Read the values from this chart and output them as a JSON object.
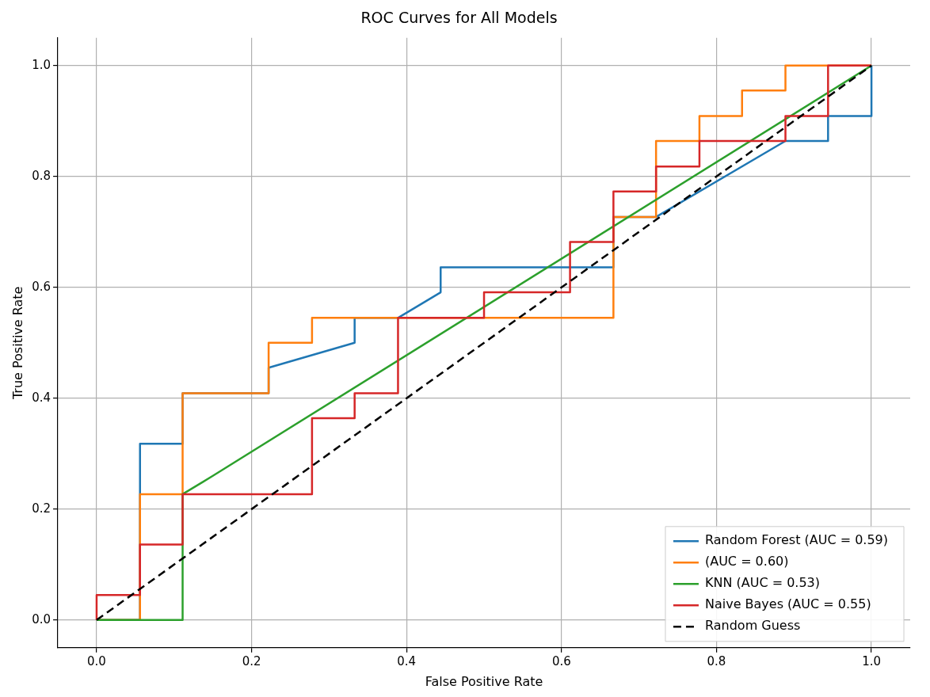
{
  "chart_data": {
    "type": "line",
    "title": "ROC Curves for All Models",
    "xlabel": "False Positive Rate",
    "ylabel": "True Positive Rate",
    "xlim": [
      -0.05,
      1.05
    ],
    "ylim": [
      -0.05,
      1.05
    ],
    "xticks": [
      {
        "value": 0,
        "label": "0.0"
      },
      0.2,
      0.4,
      0.6,
      0.8,
      {
        "value": 1,
        "label": "1.0"
      }
    ],
    "yticks": [
      {
        "value": 0,
        "label": "0.0"
      },
      0.2,
      0.4,
      0.6,
      0.8,
      {
        "value": 1,
        "label": "1.0"
      }
    ],
    "grid": true,
    "legend": "bottom right",
    "marker": "none",
    "series": [
      {
        "name": "Random Forest (AUC = 0.59)",
        "color": "#1f77b4",
        "x": [
          0,
          0.056,
          0.056,
          0.111,
          0.111,
          0.222,
          0.222,
          0.333,
          0.333,
          0.389,
          0.444,
          0.444,
          0.667,
          0.667,
          0.722,
          0.889,
          0.944,
          0.944,
          1,
          1
        ],
        "values": [
          0,
          0,
          0.318,
          0.318,
          0.409,
          0.409,
          0.455,
          0.5,
          0.545,
          0.545,
          0.591,
          0.636,
          0.636,
          0.727,
          0.727,
          0.864,
          0.864,
          0.909,
          0.909,
          1
        ]
      },
      {
        "name": "(AUC = 0.60)",
        "color": "#ff7f0e",
        "x": [
          0,
          0.056,
          0.056,
          0.111,
          0.111,
          0.222,
          0.222,
          0.278,
          0.278,
          0.667,
          0.667,
          0.722,
          0.722,
          0.778,
          0.778,
          0.833,
          0.833,
          0.889,
          0.889,
          1
        ],
        "values": [
          0,
          0,
          0.227,
          0.227,
          0.409,
          0.409,
          0.5,
          0.5,
          0.545,
          0.545,
          0.727,
          0.727,
          0.864,
          0.864,
          0.909,
          0.909,
          0.955,
          0.955,
          1,
          1
        ]
      },
      {
        "name": "KNN (AUC = 0.53)",
        "color": "#2ca02c",
        "x": [
          0,
          0.111,
          0.111,
          0.15,
          1
        ],
        "values": [
          0,
          0,
          0.227,
          0.26,
          1
        ]
      },
      {
        "name": "Naive Bayes (AUC = 0.55)",
        "color": "#d62728",
        "x": [
          0,
          0,
          0.056,
          0.056,
          0.111,
          0.111,
          0.278,
          0.278,
          0.333,
          0.333,
          0.389,
          0.389,
          0.5,
          0.5,
          0.611,
          0.611,
          0.667,
          0.667,
          0.722,
          0.722,
          0.778,
          0.778,
          0.889,
          0.889,
          0.944,
          0.944,
          1
        ],
        "values": [
          0,
          0.045,
          0.045,
          0.136,
          0.136,
          0.227,
          0.227,
          0.364,
          0.364,
          0.409,
          0.409,
          0.545,
          0.545,
          0.591,
          0.591,
          0.682,
          0.682,
          0.773,
          0.773,
          0.818,
          0.818,
          0.864,
          0.864,
          0.909,
          0.909,
          1,
          1
        ]
      },
      {
        "name": "Random Guess",
        "color": "#000000",
        "line_style": "dashed",
        "x": [
          0,
          1
        ],
        "values": [
          0,
          1
        ]
      }
    ]
  }
}
